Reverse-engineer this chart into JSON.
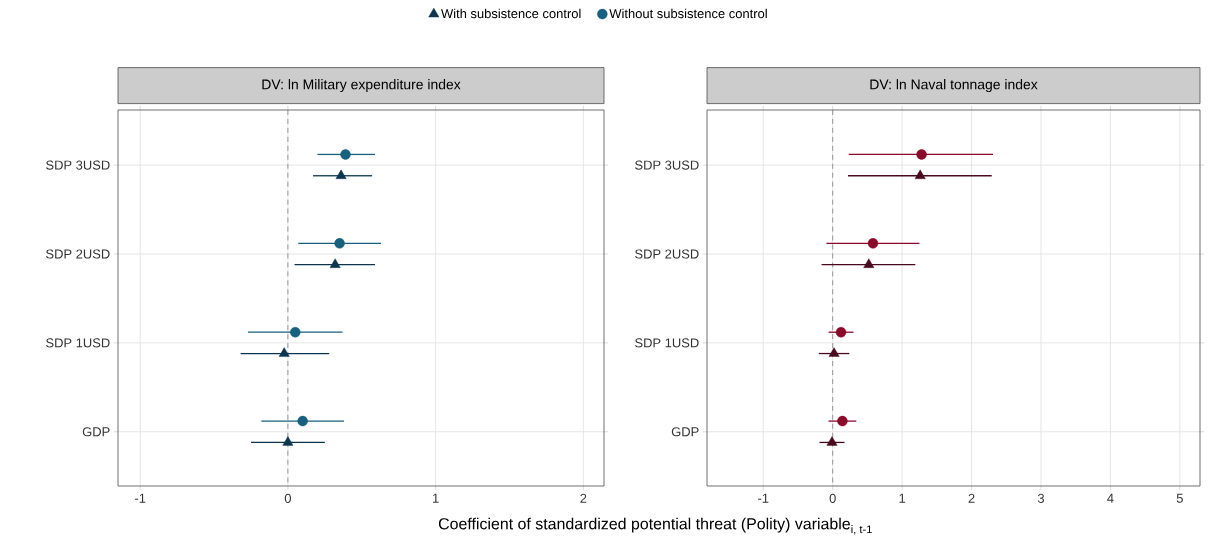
{
  "chart_data": [
    {
      "type": "scatter",
      "orientation": "horizontal",
      "title": "DV: ln Military expenditure index",
      "xlabel": "\\text{Coefficient of standardized potential threat (Polity) variable}_{\\text{i, t-1}}",
      "categories": [
        "SDP 3USD",
        "SDP 2USD",
        "SDP 1USD",
        "GDP"
      ],
      "xlim": [
        -1.15,
        2.14
      ],
      "xticks": [
        -1,
        0,
        1,
        2
      ],
      "grid": true,
      "legend": "top",
      "ref_lines": [
        {
          "axis": "x",
          "value": 0,
          "line_style": "dashed",
          "color": "#808080"
        }
      ],
      "series": [
        {
          "name": "With subsistence control",
          "color": "#0d3550",
          "marker": "triangle",
          "values": [
            0.36,
            0.32,
            -0.025,
            0
          ],
          "errors": [
            [
              0.17,
              0.57
            ],
            [
              0.045,
              0.59
            ],
            [
              -0.32,
              0.28
            ],
            [
              -0.25,
              0.25
            ]
          ]
        },
        {
          "name": "Without subsistence control",
          "color": "#17607f",
          "marker": "circle",
          "values": [
            0.39,
            0.35,
            0.05,
            0.1
          ],
          "errors": [
            [
              0.2,
              0.59
            ],
            [
              0.07,
              0.63
            ],
            [
              -0.27,
              0.37
            ],
            [
              -0.18,
              0.38
            ]
          ]
        }
      ]
    },
    {
      "type": "scatter",
      "orientation": "horizontal",
      "title": "DV: ln Naval tonnage index",
      "categories": [
        "SDP 3USD",
        "SDP 2USD",
        "SDP 1USD",
        "GDP"
      ],
      "xlim": [
        -1.81,
        5.29
      ],
      "xticks": [
        -1,
        0,
        1,
        2,
        3,
        4,
        5
      ],
      "grid": true,
      "ref_lines": [
        {
          "axis": "x",
          "value": 0,
          "line_style": "dashed",
          "color": "#808080"
        }
      ],
      "series": [
        {
          "color": "#4a0a1e",
          "marker": "triangle",
          "values": [
            1.26,
            0.52,
            0.02,
            -0.01
          ],
          "errors": [
            [
              0.22,
              2.29
            ],
            [
              -0.16,
              1.19
            ],
            [
              -0.2,
              0.24
            ],
            [
              -0.19,
              0.17
            ]
          ]
        },
        {
          "color": "#8b0a2a",
          "marker": "circle",
          "values": [
            1.28,
            0.58,
            0.12,
            0.14
          ],
          "errors": [
            [
              0.23,
              2.31
            ],
            [
              -0.09,
              1.25
            ],
            [
              -0.06,
              0.3
            ],
            [
              -0.06,
              0.34
            ]
          ]
        }
      ]
    }
  ]
}
